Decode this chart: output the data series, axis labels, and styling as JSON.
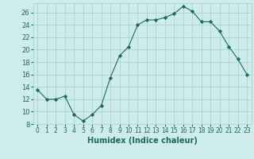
{
  "x": [
    0,
    1,
    2,
    3,
    4,
    5,
    6,
    7,
    8,
    9,
    10,
    11,
    12,
    13,
    14,
    15,
    16,
    17,
    18,
    19,
    20,
    21,
    22,
    23
  ],
  "y": [
    13.5,
    12.0,
    12.0,
    12.5,
    9.5,
    8.5,
    9.5,
    11.0,
    15.5,
    19.0,
    20.5,
    24.0,
    24.8,
    24.8,
    25.2,
    25.8,
    27.0,
    26.2,
    24.5,
    24.5,
    23.0,
    20.5,
    18.5,
    16.0
  ],
  "line_color": "#1a6b5a",
  "marker": "D",
  "marker_size": 2.2,
  "bg_color": "#ceecea",
  "grid_color": "#aad4d0",
  "xlabel": "Humidex (Indice chaleur)",
  "xlim": [
    -0.5,
    23.5
  ],
  "ylim": [
    8,
    27.5
  ],
  "yticks": [
    8,
    10,
    12,
    14,
    16,
    18,
    20,
    22,
    24,
    26
  ],
  "xticks": [
    0,
    1,
    2,
    3,
    4,
    5,
    6,
    7,
    8,
    9,
    10,
    11,
    12,
    13,
    14,
    15,
    16,
    17,
    18,
    19,
    20,
    21,
    22,
    23
  ],
  "tick_color": "#1a6b5a",
  "label_color": "#1a6b5a",
  "xlabel_fontsize": 7,
  "ytick_fontsize": 6,
  "xtick_fontsize": 5.5,
  "linewidth": 0.8
}
